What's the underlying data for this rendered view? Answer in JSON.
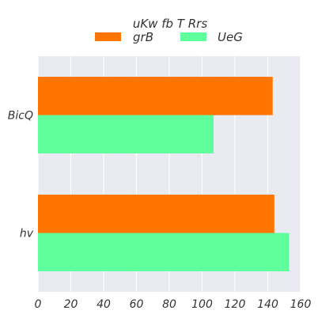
{
  "chart_data": {
    "type": "bar",
    "orientation": "horizontal",
    "legend_title": "uKw fb  T Rrs",
    "legend_placement": "top-center",
    "categories": [
      "BicQ",
      "hv"
    ],
    "series": [
      {
        "name": "grB",
        "color": "#ff7500",
        "values": [
          143,
          144
        ]
      },
      {
        "name": "UeG",
        "color": "#5eff9c",
        "values": [
          107,
          153
        ]
      }
    ],
    "xlim": [
      0,
      160
    ],
    "xticks": [
      0,
      20,
      40,
      60,
      80,
      100,
      120,
      140,
      160
    ],
    "grid": true,
    "background": "#eaeaf2"
  }
}
